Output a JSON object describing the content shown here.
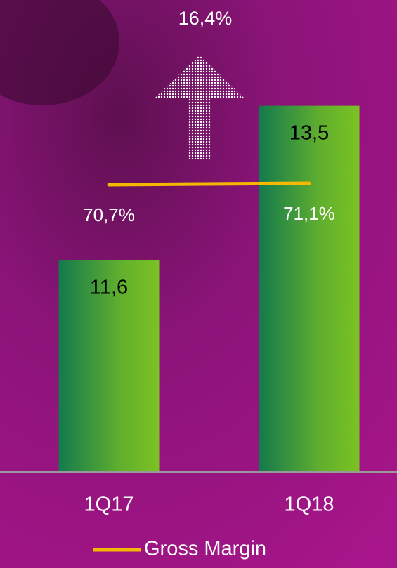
{
  "chart_data": {
    "type": "bar",
    "categories": [
      "1Q17",
      "1Q18"
    ],
    "values": [
      11.6,
      13.5
    ],
    "value_labels": [
      "11,6",
      "13,5"
    ],
    "ylim": [
      9,
      14.8
    ],
    "series": [
      {
        "name": "Gross Margin",
        "color": "#f5b800",
        "values": [
          70.7,
          71.1
        ],
        "value_labels": [
          "70,7%",
          "71,1%"
        ],
        "axis": "y2"
      }
    ],
    "y2lim": [
      -11.1,
      123.3
    ],
    "annotations": [
      "16,4%"
    ]
  }
}
